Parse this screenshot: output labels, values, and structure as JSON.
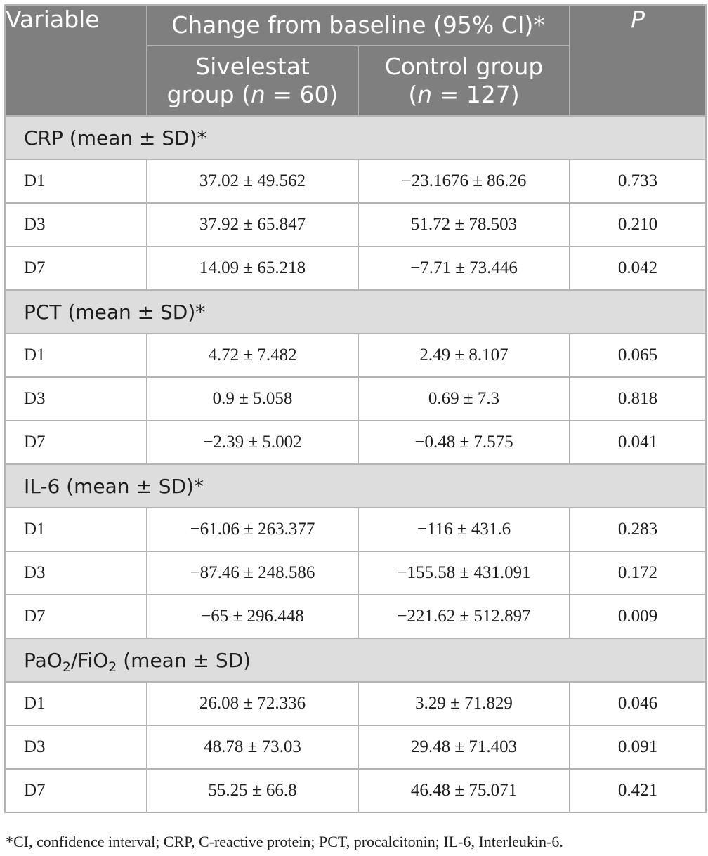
{
  "header": {
    "variable": "Variable",
    "change": "Change from baseline (95% CI)*",
    "p": "P",
    "sivelestat_line1": "Sivelestat",
    "sivelestat_line2_pre": "group (",
    "sivelestat_n": "n",
    "sivelestat_line2_post": " = 60)",
    "control_line1": "Control group",
    "control_line2_pre": "(",
    "control_n": "n",
    "control_line2_post": " = 127)"
  },
  "sections": [
    {
      "title": "CRP (mean ± SD)*",
      "rows": [
        {
          "label": "D1",
          "sivelestat": "37.02 ± 49.562",
          "control": "−23.1676 ± 86.26",
          "p": "0.733"
        },
        {
          "label": "D3",
          "sivelestat": "37.92 ± 65.847",
          "control": "51.72 ± 78.503",
          "p": "0.210"
        },
        {
          "label": "D7",
          "sivelestat": "14.09 ± 65.218",
          "control": "−7.71 ± 73.446",
          "p": "0.042"
        }
      ]
    },
    {
      "title": "PCT (mean ± SD)*",
      "rows": [
        {
          "label": "D1",
          "sivelestat": "4.72 ± 7.482",
          "control": "2.49 ± 8.107",
          "p": "0.065"
        },
        {
          "label": "D3",
          "sivelestat": "0.9 ± 5.058",
          "control": "0.69 ± 7.3",
          "p": "0.818"
        },
        {
          "label": "D7",
          "sivelestat": "−2.39 ± 5.002",
          "control": "−0.48 ± 7.575",
          "p": "0.041"
        }
      ]
    },
    {
      "title": "IL-6 (mean ± SD)*",
      "rows": [
        {
          "label": "D1",
          "sivelestat": "−61.06 ± 263.377",
          "control": "−116 ± 431.6",
          "p": "0.283"
        },
        {
          "label": "D3",
          "sivelestat": "−87.46 ± 248.586",
          "control": "−155.58 ± 431.091",
          "p": "0.172"
        },
        {
          "label": "D7",
          "sivelestat": "−65 ± 296.448",
          "control": "−221.62 ± 512.897",
          "p": "0.009"
        }
      ]
    },
    {
      "title_parts": [
        "PaO",
        "2",
        "/FiO",
        "2",
        " (mean ± SD)"
      ],
      "rows": [
        {
          "label": "D1",
          "sivelestat": "26.08 ± 72.336",
          "control": "3.29 ± 71.829",
          "p": "0.046"
        },
        {
          "label": "D3",
          "sivelestat": "48.78 ± 73.03",
          "control": "29.48 ± 71.403",
          "p": "0.091"
        },
        {
          "label": "D7",
          "sivelestat": "55.25 ± 66.8",
          "control": "46.48 ± 75.071",
          "p": "0.421"
        }
      ]
    }
  ],
  "footnote": "*CI, confidence interval; CRP, C-reactive protein; PCT, procalcitonin; IL-6, Interleukin-6."
}
